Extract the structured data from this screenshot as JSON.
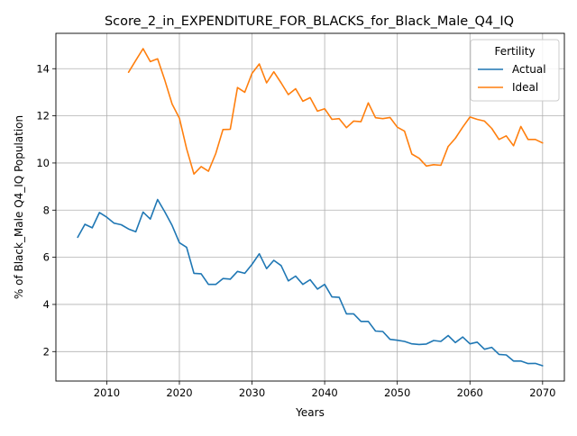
{
  "chart_data": {
    "type": "line",
    "title": "Score_2_in_EXPENDITURE_FOR_BLACKS_for_Black_Male_Q4_IQ",
    "xlabel": "Years",
    "ylabel": "% of Black_Male Q4_IQ Population",
    "xlim": [
      2003,
      2073
    ],
    "ylim": [
      0.75,
      15.5
    ],
    "xticks": [
      2010,
      2020,
      2030,
      2040,
      2050,
      2060,
      2070
    ],
    "yticks": [
      2,
      4,
      6,
      8,
      10,
      12,
      14
    ],
    "grid": true,
    "legend": {
      "title": "Fertility",
      "placement": "top-right"
    },
    "series": [
      {
        "name": "Actual",
        "color": "#1f77b4",
        "x": [
          2006,
          2007,
          2008,
          2009,
          2010,
          2011,
          2012,
          2013,
          2014,
          2015,
          2016,
          2017,
          2018,
          2019,
          2020,
          2021,
          2022,
          2023,
          2024,
          2025,
          2026,
          2027,
          2028,
          2029,
          2030,
          2031,
          2032,
          2033,
          2034,
          2035,
          2036,
          2037,
          2038,
          2039,
          2040,
          2041,
          2042,
          2043,
          2044,
          2045,
          2046,
          2047,
          2048,
          2049,
          2050,
          2051,
          2052,
          2053,
          2054,
          2055,
          2056,
          2057,
          2058,
          2059,
          2060,
          2061,
          2062,
          2063,
          2064,
          2065,
          2066,
          2067,
          2068,
          2069,
          2070
        ],
        "values": [
          6.85,
          7.4,
          7.25,
          7.9,
          7.7,
          7.45,
          7.38,
          7.2,
          7.08,
          7.92,
          7.62,
          8.45,
          7.92,
          7.35,
          6.62,
          6.42,
          5.32,
          5.3,
          4.85,
          4.85,
          5.1,
          5.07,
          5.4,
          5.32,
          5.7,
          6.15,
          5.52,
          5.87,
          5.65,
          5.0,
          5.2,
          4.85,
          5.05,
          4.65,
          4.85,
          4.32,
          4.3,
          3.6,
          3.6,
          3.28,
          3.28,
          2.87,
          2.85,
          2.52,
          2.48,
          2.43,
          2.33,
          2.3,
          2.32,
          2.47,
          2.43,
          2.68,
          2.38,
          2.62,
          2.33,
          2.4,
          2.1,
          2.18,
          1.88,
          1.86,
          1.6,
          1.6,
          1.49,
          1.5,
          1.4
        ]
      },
      {
        "name": "Ideal",
        "color": "#ff7f0e",
        "x": [
          2013,
          2014,
          2015,
          2016,
          2017,
          2018,
          2019,
          2020,
          2021,
          2022,
          2023,
          2024,
          2025,
          2026,
          2027,
          2028,
          2029,
          2030,
          2031,
          2032,
          2033,
          2034,
          2035,
          2036,
          2037,
          2038,
          2039,
          2040,
          2041,
          2042,
          2043,
          2044,
          2045,
          2046,
          2047,
          2048,
          2049,
          2050,
          2051,
          2052,
          2053,
          2054,
          2055,
          2056,
          2057,
          2058,
          2059,
          2060,
          2061,
          2062,
          2063,
          2064,
          2065,
          2066,
          2067,
          2068,
          2069,
          2070
        ],
        "values": [
          13.85,
          14.35,
          14.85,
          14.3,
          14.42,
          13.5,
          12.5,
          11.9,
          10.6,
          9.53,
          9.85,
          9.65,
          10.4,
          11.42,
          11.43,
          13.2,
          13.0,
          13.8,
          14.2,
          13.4,
          13.87,
          13.4,
          12.9,
          13.15,
          12.62,
          12.77,
          12.2,
          12.3,
          11.85,
          11.88,
          11.5,
          11.78,
          11.75,
          12.55,
          11.92,
          11.88,
          11.93,
          11.52,
          11.35,
          10.38,
          10.2,
          9.87,
          9.93,
          9.9,
          10.7,
          11.05,
          11.52,
          11.95,
          11.85,
          11.78,
          11.47,
          11.0,
          11.15,
          10.73,
          11.55,
          11.0,
          11.0,
          10.85
        ]
      }
    ]
  }
}
